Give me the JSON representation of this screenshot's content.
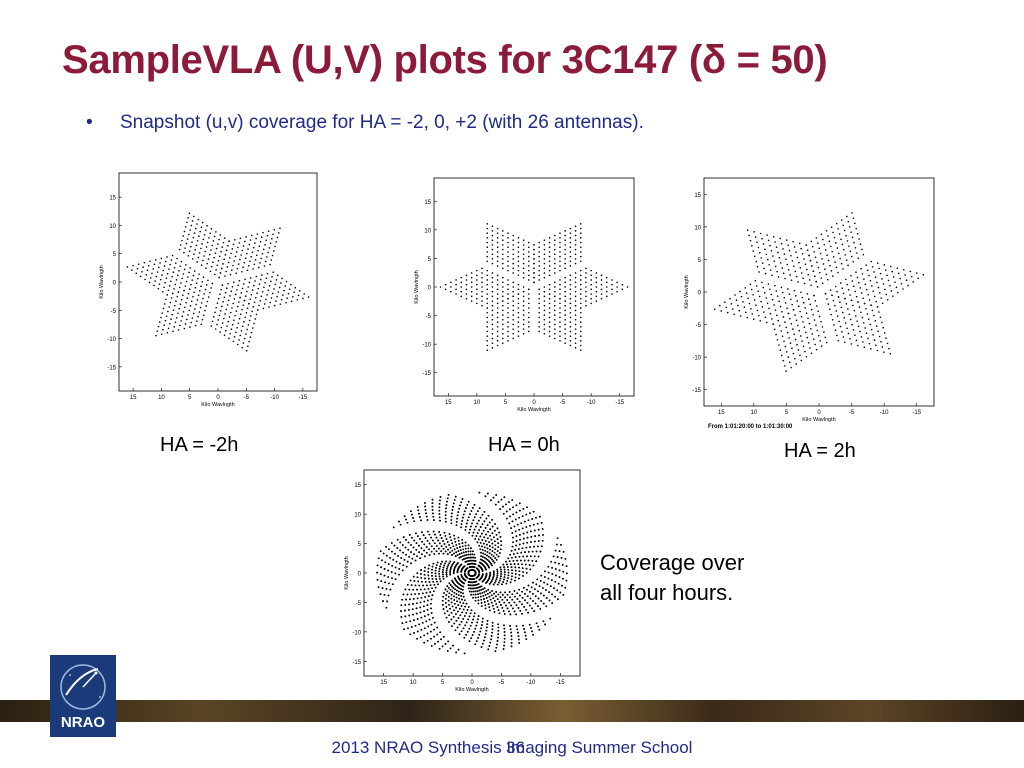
{
  "title": "SampleVLA (U,V) plots for 3C147 (δ = 50)",
  "bullet": {
    "marker": "•",
    "text": "Snapshot (u,v) coverage for HA = -2, 0, +2  (with 26 antennas)."
  },
  "plots": [
    {
      "caption": "HA = -2h",
      "ylabel": "Kilo Wavlngth",
      "xlabel": "Kilo Wavlngth",
      "range_note": "",
      "rotation_deg": -12
    },
    {
      "caption": "HA = 0h",
      "ylabel": "Kilo Wavlngth",
      "xlabel": "Kilo Wavlngth",
      "range_note": "",
      "rotation_deg": 0
    },
    {
      "caption": "HA = 2h",
      "ylabel": "Kilo Wavlngth",
      "xlabel": "Kilo Wavlngth",
      "range_note": "From  1:01:20:00  to  1:01:30:00",
      "rotation_deg": 12
    },
    {
      "caption": "",
      "ylabel": "Kilo Wavlngth",
      "xlabel": "Kilo Wavlngth",
      "range_note": "",
      "rotation_deg": 0
    }
  ],
  "axis": {
    "xticks": [
      "15",
      "10",
      "5",
      "0",
      "-5",
      "-10",
      "-15"
    ],
    "yticks": [
      "15",
      "10",
      "5",
      "0",
      "-5",
      "-10",
      "-15"
    ]
  },
  "coverage_text": [
    "Coverage over",
    "all four hours."
  ],
  "logo": {
    "text": "NRAO"
  },
  "footer": {
    "text": "2013 NRAO Synthesis Imaging Summer School",
    "page": "36"
  }
}
